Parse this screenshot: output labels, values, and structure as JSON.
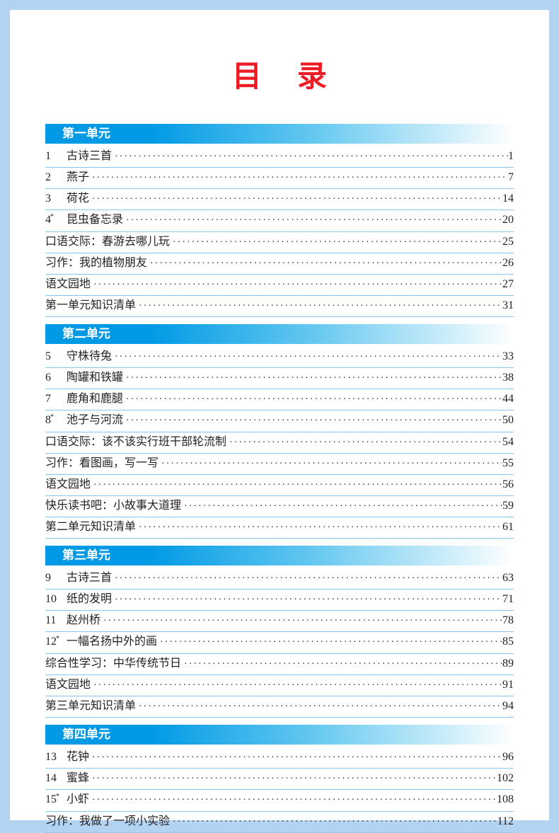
{
  "title": "目录",
  "colors": {
    "outer_bg": "#b3d3f3",
    "page_bg": "#ffffff",
    "title_color": "#ed1c24",
    "header_text": "#ffffff",
    "header_grad_start": "#0099e5",
    "header_grad_mid": "#5ec5ef",
    "header_grad_end": "#ffffff",
    "body_text": "#231f20",
    "row_border": "#8cc6e8"
  },
  "fonts": {
    "title_size": 42,
    "header_size": 17,
    "body_size": 16
  },
  "units": [
    {
      "header": "第一单元",
      "items": [
        {
          "num": "1",
          "star": false,
          "label": "古诗三首",
          "page": "1"
        },
        {
          "num": "2",
          "star": false,
          "label": "燕子",
          "page": "7"
        },
        {
          "num": "3",
          "star": false,
          "label": "荷花",
          "page": "14"
        },
        {
          "num": "4",
          "star": true,
          "label": "昆虫备忘录",
          "page": "20"
        },
        {
          "num": "",
          "star": false,
          "label": "口语交际：春游去哪儿玩",
          "page": "25",
          "noindent": true
        },
        {
          "num": "",
          "star": false,
          "label": "习作：我的植物朋友",
          "page": "26",
          "noindent": true
        },
        {
          "num": "",
          "star": false,
          "label": "语文园地",
          "page": "27",
          "noindent": true
        },
        {
          "num": "",
          "star": false,
          "label": "第一单元知识清单",
          "page": "31",
          "noindent": true
        }
      ]
    },
    {
      "header": "第二单元",
      "items": [
        {
          "num": "5",
          "star": false,
          "label": "守株待兔",
          "page": "33"
        },
        {
          "num": "6",
          "star": false,
          "label": "陶罐和铁罐",
          "page": "38"
        },
        {
          "num": "7",
          "star": false,
          "label": "鹿角和鹿腿",
          "page": "44"
        },
        {
          "num": "8",
          "star": true,
          "label": "池子与河流",
          "page": "50"
        },
        {
          "num": "",
          "star": false,
          "label": "口语交际：该不该实行班干部轮流制",
          "page": "54",
          "noindent": true
        },
        {
          "num": "",
          "star": false,
          "label": "习作：看图画，写一写",
          "page": "55",
          "noindent": true
        },
        {
          "num": "",
          "star": false,
          "label": "语文园地",
          "page": "56",
          "noindent": true
        },
        {
          "num": "",
          "star": false,
          "label": "快乐读书吧：小故事大道理",
          "page": "59",
          "noindent": true
        },
        {
          "num": "",
          "star": false,
          "label": "第二单元知识清单",
          "page": "61",
          "noindent": true
        }
      ]
    },
    {
      "header": "第三单元",
      "items": [
        {
          "num": "9",
          "star": false,
          "label": "古诗三首",
          "page": "63"
        },
        {
          "num": "10",
          "star": false,
          "label": "纸的发明",
          "page": "71"
        },
        {
          "num": "11",
          "star": false,
          "label": "赵州桥",
          "page": "78"
        },
        {
          "num": "12",
          "star": true,
          "label": "一幅名扬中外的画",
          "page": "85"
        },
        {
          "num": "",
          "star": false,
          "label": "综合性学习：中华传统节日",
          "page": "89",
          "noindent": true
        },
        {
          "num": "",
          "star": false,
          "label": "语文园地",
          "page": "91",
          "noindent": true
        },
        {
          "num": "",
          "star": false,
          "label": "第三单元知识清单",
          "page": "94",
          "noindent": true
        }
      ]
    },
    {
      "header": "第四单元",
      "items": [
        {
          "num": "13",
          "star": false,
          "label": "花钟",
          "page": "96"
        },
        {
          "num": "14",
          "star": false,
          "label": "蜜蜂",
          "page": "102"
        },
        {
          "num": "15",
          "star": true,
          "label": "小虾",
          "page": "108"
        },
        {
          "num": "",
          "star": false,
          "label": "习作：我做了一项小实验",
          "page": "112",
          "noindent": true
        }
      ]
    }
  ]
}
